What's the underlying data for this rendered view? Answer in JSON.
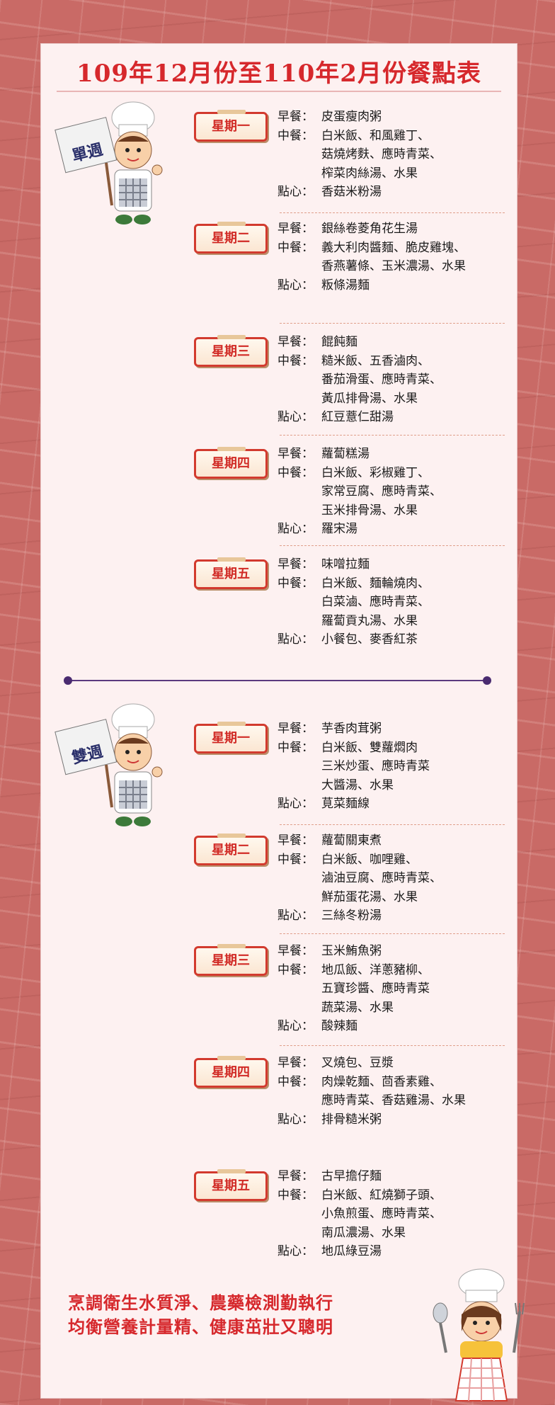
{
  "title": "109年12月份至110年2月份餐點表",
  "weeks": [
    {
      "label": "單週",
      "days": [
        {
          "name": "星期一",
          "meals": [
            {
              "k": "早餐：",
              "v": "皮蛋瘦肉粥"
            },
            {
              "k": "中餐：",
              "v": "白米飯、和風雞丁、\n菇燒烤麩、應時青菜、\n榨菜肉絲湯、水果"
            },
            {
              "k": "點心：",
              "v": "香菇米粉湯"
            }
          ]
        },
        {
          "name": "星期二",
          "meals": [
            {
              "k": "早餐：",
              "v": "銀絲卷菱角花生湯"
            },
            {
              "k": "中餐：",
              "v": "義大利肉醬麵、脆皮雞塊、\n香燕薯條、玉米濃湯、水果"
            },
            {
              "k": "點心：",
              "v": "粄條湯麵"
            }
          ]
        },
        {
          "name": "星期三",
          "meals": [
            {
              "k": "早餐：",
              "v": "餛飩麵"
            },
            {
              "k": "中餐：",
              "v": "糙米飯、五香滷肉、\n番茄滑蛋、應時青菜、\n黃瓜排骨湯、水果"
            },
            {
              "k": "點心：",
              "v": "紅豆薏仁甜湯"
            }
          ]
        },
        {
          "name": "星期四",
          "meals": [
            {
              "k": "早餐：",
              "v": "蘿蔔糕湯"
            },
            {
              "k": "中餐：",
              "v": "白米飯、彩椒雞丁、\n家常豆腐、應時青菜、\n玉米排骨湯、水果"
            },
            {
              "k": "點心：",
              "v": "羅宋湯"
            }
          ]
        },
        {
          "name": "星期五",
          "meals": [
            {
              "k": "早餐：",
              "v": "味噌拉麵"
            },
            {
              "k": "中餐：",
              "v": "白米飯、麵輪燒肉、\n白菜滷、應時青菜、\n羅蔔貢丸湯、水果"
            },
            {
              "k": "點心：",
              "v": "小餐包、麥香紅茶"
            }
          ]
        }
      ]
    },
    {
      "label": "雙週",
      "days": [
        {
          "name": "星期一",
          "meals": [
            {
              "k": "早餐：",
              "v": "芋香肉茸粥"
            },
            {
              "k": "中餐：",
              "v": "白米飯、雙蘿燜肉\n三米炒蛋、應時青菜\n大醬湯、水果"
            },
            {
              "k": "點心：",
              "v": "莧菜麵線"
            }
          ]
        },
        {
          "name": "星期二",
          "meals": [
            {
              "k": "早餐：",
              "v": "蘿蔔關東煮"
            },
            {
              "k": "中餐：",
              "v": "白米飯、咖哩雞、\n滷油豆腐、應時青菜、\n鮮茄蛋花湯、水果"
            },
            {
              "k": "點心：",
              "v": "三絲冬粉湯"
            }
          ]
        },
        {
          "name": "星期三",
          "meals": [
            {
              "k": "早餐：",
              "v": "玉米鮪魚粥"
            },
            {
              "k": "中餐：",
              "v": "地瓜飯、洋蔥豬柳、\n五寶珍醬、應時青菜\n蔬菜湯、水果"
            },
            {
              "k": "點心：",
              "v": "酸辣麵"
            }
          ]
        },
        {
          "name": "星期四",
          "meals": [
            {
              "k": "早餐：",
              "v": "叉燒包、豆漿"
            },
            {
              "k": "中餐：",
              "v": "肉燥乾麵、茴香素雞、\n應時青菜、香菇雞湯、水果"
            },
            {
              "k": "點心：",
              "v": "排骨糙米粥"
            }
          ]
        },
        {
          "name": "星期五",
          "meals": [
            {
              "k": "早餐：",
              "v": "古早擔仔麵"
            },
            {
              "k": "中餐：",
              "v": "白米飯、紅燒獅子頭、\n小魚煎蛋、應時青菜、\n南瓜濃湯、水果"
            },
            {
              "k": "點心：",
              "v": "地瓜綠豆湯"
            }
          ]
        }
      ]
    }
  ],
  "slogan": [
    "烹調衛生水質淨、農藥檢測勤執行",
    "均衡營養計量精、健康茁壯又聰明"
  ],
  "colors": {
    "title": "#d6282c",
    "badge_border": "#d23a2e",
    "background": "#c96a66",
    "panel": "#fdf1f1"
  }
}
